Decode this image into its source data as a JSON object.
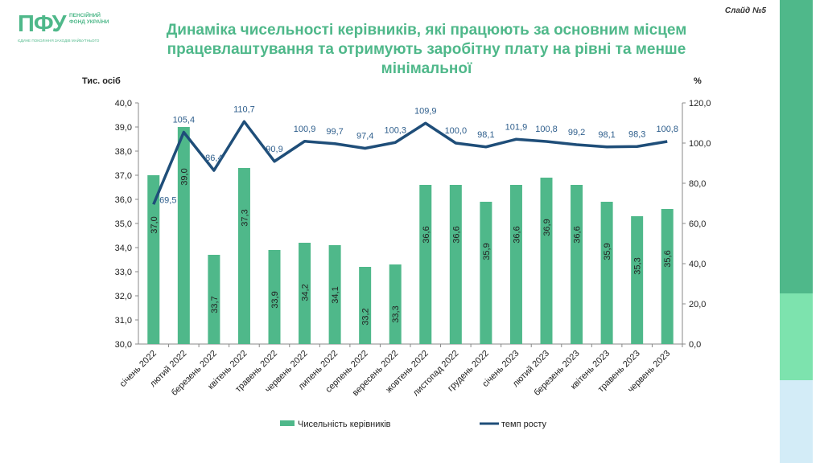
{
  "header": {
    "logo_mark": "ПФУ",
    "logo_text": "ПЕНСІЙНИЙ ФОНД УКРАЇНИ",
    "logo_tagline": "ЄДИНЕ ПОКОЛІННЯ ЗАХОДІВ МАЙБУТНЬОГО",
    "slide_number": "Слайд №5",
    "title": "Динаміка чисельності керівників, які працюють за основним місцем працевлаштування та отримують заробітну плату на рівні та менше мінімальної"
  },
  "colors": {
    "bars": "#4fb88a",
    "line": "#1f4e79",
    "line_labels": "#2e5e8c",
    "accent": "#4fb88a"
  },
  "chart_data": {
    "type": "bar+line",
    "categories": [
      "січень 2022",
      "лютий 2022",
      "березень 2022",
      "квітень 2022",
      "травень 2022",
      "червень 2022",
      "липень 2022",
      "серпень 2022",
      "вересень 2022",
      "жовтень 2022",
      "листопад 2022",
      "грудень 2022",
      "січень 2023",
      "лютий 2023",
      "березень 2023",
      "квітень 2023",
      "травень 2023",
      "червень 2023"
    ],
    "series": [
      {
        "name": "Чисельність керівників",
        "axis": "left",
        "type": "bar",
        "values": [
          37.0,
          39.0,
          33.7,
          37.3,
          33.9,
          34.2,
          34.1,
          33.2,
          33.3,
          36.6,
          36.6,
          35.9,
          36.6,
          36.9,
          36.6,
          35.9,
          35.3,
          35.6
        ],
        "labels": [
          "37,0",
          "39,0",
          "33,7",
          "37,3",
          "33,9",
          "34,2",
          "34,1",
          "33,2",
          "33,3",
          "36,6",
          "36,6",
          "35,9",
          "36,6",
          "36,9",
          "36,6",
          "35,9",
          "35,3",
          "35,6"
        ]
      },
      {
        "name": "темп росту",
        "axis": "right",
        "type": "line",
        "values": [
          69.5,
          105.4,
          86.4,
          110.7,
          90.9,
          100.9,
          99.7,
          97.4,
          100.3,
          109.9,
          100.0,
          98.1,
          101.9,
          100.8,
          99.2,
          98.1,
          98.3,
          100.8
        ],
        "labels": [
          "69,5",
          "105,4",
          "86,4",
          "110,7",
          "90,9",
          "100,9",
          "99,7",
          "97,4",
          "100,3",
          "109,9",
          "100,0",
          "98,1",
          "101,9",
          "100,8",
          "99,2",
          "98,1",
          "98,3",
          "100,8"
        ]
      }
    ],
    "y_left": {
      "unit_label": "Тис. осіб",
      "min": 30,
      "max": 40,
      "ticks": [
        "30,0",
        "31,0",
        "32,0",
        "33,0",
        "34,0",
        "35,0",
        "36,0",
        "37,0",
        "38,0",
        "39,0",
        "40,0"
      ]
    },
    "y_right": {
      "unit_label": "%",
      "min": 0,
      "max": 120,
      "ticks": [
        "0,0",
        "20,0",
        "40,0",
        "60,0",
        "80,0",
        "100,0",
        "120,0"
      ]
    },
    "legend": {
      "placement": "bottom",
      "items": [
        "Чисельність керівників",
        "темп росту"
      ]
    }
  }
}
